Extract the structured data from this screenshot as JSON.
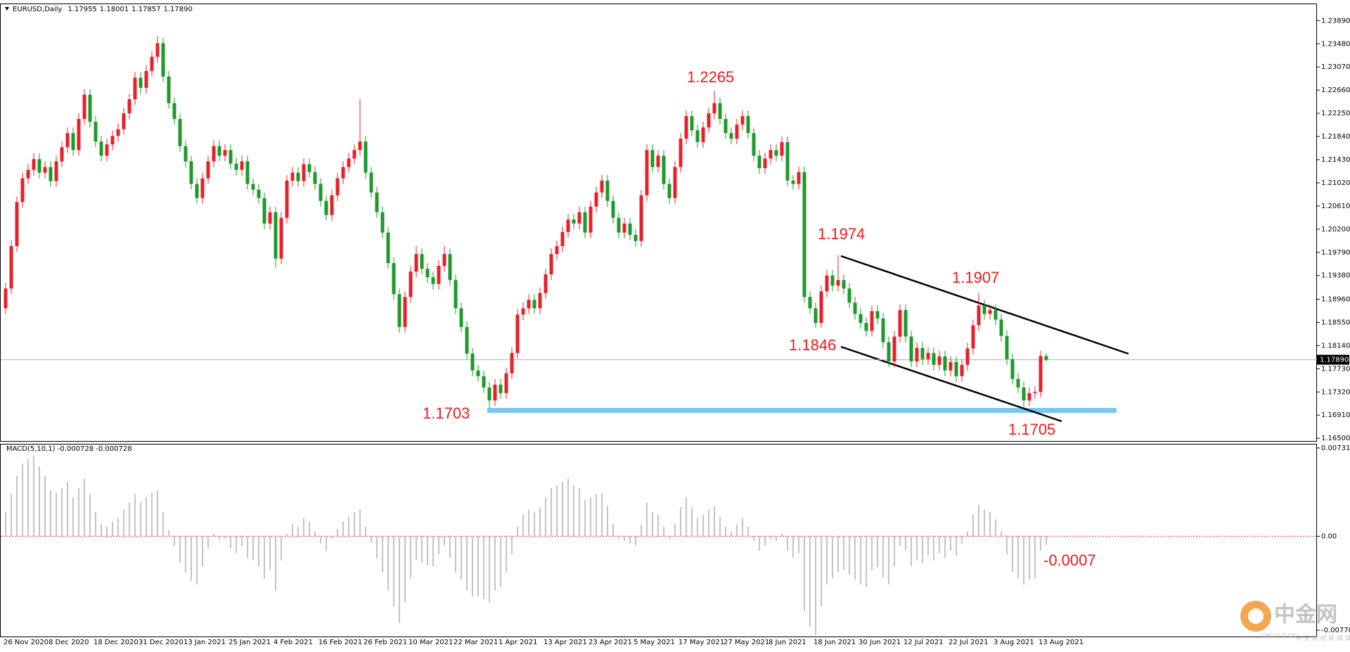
{
  "header": {
    "symbol": "EURUSD,Daily",
    "ohlc": [
      "1.17955",
      "1.18001",
      "1.17857",
      "1.17890"
    ]
  },
  "chart_data": [
    {
      "type": "candlestick",
      "categories": [
        "26 Nov 2020",
        null,
        null,
        null,
        null,
        null,
        null,
        null,
        "8 Dec 2020",
        null,
        null,
        null,
        null,
        null,
        null,
        null,
        "18 Dec 2020",
        null,
        null,
        null,
        null,
        null,
        null,
        null,
        "31 Dec 2020",
        null,
        null,
        null,
        null,
        null,
        null,
        null,
        "13 Jan 2021",
        null,
        null,
        null,
        null,
        null,
        null,
        null,
        "25 Jan 2021",
        null,
        null,
        null,
        null,
        null,
        null,
        null,
        "4 Feb 2021",
        null,
        null,
        null,
        null,
        null,
        null,
        null,
        "16 Feb 2021",
        null,
        null,
        null,
        null,
        null,
        null,
        null,
        "26 Feb 2021",
        null,
        null,
        null,
        null,
        null,
        null,
        null,
        "10 Mar 2021",
        null,
        null,
        null,
        null,
        null,
        null,
        null,
        "22 Mar 2021",
        null,
        null,
        null,
        null,
        null,
        null,
        null,
        "1 Apr 2021",
        null,
        null,
        null,
        null,
        null,
        null,
        null,
        "13 Apr 2021",
        null,
        null,
        null,
        null,
        null,
        null,
        null,
        "23 Apr 2021",
        null,
        null,
        null,
        null,
        null,
        null,
        null,
        "5 May 2021",
        null,
        null,
        null,
        null,
        null,
        null,
        null,
        "17 May 2021",
        null,
        null,
        null,
        null,
        null,
        null,
        null,
        "27 May 2021",
        null,
        null,
        null,
        null,
        null,
        null,
        null,
        "8 Jun 2021",
        null,
        null,
        null,
        null,
        null,
        null,
        null,
        "18 Jun 2021",
        null,
        null,
        null,
        null,
        null,
        null,
        null,
        "30 Jun 2021",
        null,
        null,
        null,
        null,
        null,
        null,
        null,
        "12 Jul 2021",
        null,
        null,
        null,
        null,
        null,
        null,
        null,
        "22 Jul 2021",
        null,
        null,
        null,
        null,
        null,
        null,
        null,
        "3 Aug 2021",
        null,
        null,
        null,
        null,
        null,
        null,
        null,
        "13 Aug 2021",
        null
      ],
      "open": [
        1.188,
        1.1915,
        1.199,
        1.2068,
        1.211,
        1.2125,
        1.2144,
        1.212,
        1.213,
        1.2105,
        1.214,
        1.2165,
        1.219,
        1.216,
        1.2215,
        1.2258,
        1.221,
        1.2175,
        1.215,
        1.217,
        1.2185,
        1.2197,
        1.2225,
        1.225,
        1.2288,
        1.227,
        1.23,
        1.2325,
        1.2349,
        1.229,
        1.2243,
        1.2215,
        1.2167,
        1.214,
        1.21,
        1.2075,
        1.211,
        1.214,
        1.2167,
        1.215,
        1.216,
        1.2136,
        1.2125,
        1.214,
        1.21,
        1.209,
        1.2075,
        1.203,
        1.205,
        1.1968,
        1.204,
        1.2106,
        1.212,
        1.2105,
        1.2135,
        1.2121,
        1.21,
        1.207,
        1.2045,
        1.208,
        1.211,
        1.213,
        1.2145,
        1.216,
        1.2175,
        1.212,
        1.2085,
        1.205,
        1.2014,
        1.196,
        1.1905,
        1.1847,
        1.19,
        1.1945,
        1.1976,
        1.195,
        1.1935,
        1.1923,
        1.1955,
        1.1976,
        1.193,
        1.188,
        1.1847,
        1.18,
        1.177,
        1.176,
        1.174,
        1.1717,
        1.1745,
        1.173,
        1.1765,
        1.1801,
        1.1869,
        1.188,
        1.1895,
        1.188,
        1.1907,
        1.194,
        1.1976,
        1.199,
        1.2015,
        1.2037,
        1.203,
        1.205,
        1.2014,
        1.206,
        1.2085,
        1.2106,
        1.207,
        1.204,
        1.2014,
        1.203,
        1.201,
        1.1999,
        1.208,
        1.216,
        1.213,
        1.215,
        1.21,
        1.2075,
        1.213,
        1.218,
        1.222,
        1.2195,
        1.2174,
        1.22,
        1.2225,
        1.2243,
        1.2215,
        1.219,
        1.218,
        1.2205,
        1.222,
        1.219,
        1.215,
        1.2128,
        1.2145,
        1.216,
        1.215,
        1.2174,
        1.2106,
        1.21,
        1.2121,
        1.19,
        1.188,
        1.1854,
        1.191,
        1.1938,
        1.192,
        1.193,
        1.1915,
        1.189,
        1.187,
        1.1854,
        1.184,
        1.1875,
        1.1862,
        1.182,
        1.1786,
        1.183,
        1.1877,
        1.183,
        1.1786,
        1.181,
        1.179,
        1.1801,
        1.178,
        1.1795,
        1.177,
        1.1785,
        1.176,
        1.178,
        1.1809,
        1.185,
        1.1885,
        1.187,
        1.1877,
        1.186,
        1.1831,
        1.179,
        1.1755,
        1.174,
        1.1717,
        1.173,
        1.1732,
        1.17955
      ],
      "high": [
        1.1925,
        1.2,
        1.2078,
        1.212,
        1.2135,
        1.2154,
        1.2154,
        1.214,
        1.214,
        1.215,
        1.2175,
        1.22,
        1.22,
        1.2225,
        1.2268,
        1.2268,
        1.222,
        1.2185,
        1.218,
        1.2195,
        1.2207,
        1.2235,
        1.226,
        1.2298,
        1.2298,
        1.231,
        1.2335,
        1.2362,
        1.2359,
        1.23,
        1.2253,
        1.2225,
        1.2177,
        1.215,
        1.211,
        1.212,
        1.215,
        1.2177,
        1.2177,
        1.217,
        1.217,
        1.2146,
        1.215,
        1.215,
        1.211,
        1.21,
        1.2085,
        1.206,
        1.206,
        1.205,
        1.2116,
        1.213,
        1.213,
        1.2145,
        1.2145,
        1.2131,
        1.211,
        1.208,
        1.209,
        1.212,
        1.214,
        1.2155,
        1.217,
        1.225,
        1.2185,
        1.213,
        1.2095,
        1.206,
        1.2024,
        1.197,
        1.1915,
        1.191,
        1.1955,
        1.199,
        1.1986,
        1.196,
        1.1945,
        1.1965,
        1.199,
        1.1986,
        1.194,
        1.189,
        1.1857,
        1.181,
        1.178,
        1.177,
        1.175,
        1.1755,
        1.1755,
        1.1775,
        1.1811,
        1.1879,
        1.189,
        1.1905,
        1.1905,
        1.1917,
        1.195,
        1.1986,
        1.2,
        1.2025,
        1.2047,
        1.2047,
        1.206,
        1.206,
        1.207,
        1.2095,
        1.2116,
        1.2116,
        1.208,
        1.205,
        1.204,
        1.204,
        1.202,
        1.209,
        1.217,
        1.217,
        1.216,
        1.216,
        1.211,
        1.214,
        1.219,
        1.223,
        1.223,
        1.2205,
        1.221,
        1.2235,
        1.2265,
        1.2253,
        1.2225,
        1.22,
        1.2215,
        1.223,
        1.223,
        1.22,
        1.216,
        1.2155,
        1.217,
        1.217,
        1.2184,
        1.2184,
        1.2116,
        1.2131,
        1.2131,
        1.191,
        1.189,
        1.192,
        1.1948,
        1.1948,
        1.1974,
        1.194,
        1.1925,
        1.19,
        1.188,
        1.1864,
        1.1885,
        1.1885,
        1.1872,
        1.183,
        1.184,
        1.1887,
        1.1887,
        1.184,
        1.182,
        1.182,
        1.1811,
        1.1811,
        1.1805,
        1.1805,
        1.1795,
        1.1795,
        1.179,
        1.1819,
        1.186,
        1.1907,
        1.1895,
        1.1887,
        1.1887,
        1.187,
        1.1841,
        1.18,
        1.1765,
        1.175,
        1.174,
        1.1742,
        1.1805,
        1.18001
      ],
      "low": [
        1.187,
        1.1905,
        1.198,
        1.2058,
        1.21,
        1.2115,
        1.211,
        1.211,
        1.2095,
        1.2095,
        1.213,
        1.2155,
        1.215,
        1.215,
        1.2205,
        1.22,
        1.2165,
        1.214,
        1.214,
        1.216,
        1.2175,
        1.2187,
        1.2215,
        1.224,
        1.226,
        1.226,
        1.229,
        1.2315,
        1.228,
        1.2233,
        1.2205,
        1.2157,
        1.213,
        1.209,
        1.2065,
        1.2065,
        1.21,
        1.213,
        1.214,
        1.214,
        1.2126,
        1.2115,
        1.2115,
        1.209,
        1.208,
        1.2065,
        1.202,
        1.202,
        1.1952,
        1.1958,
        1.203,
        1.2096,
        1.2095,
        1.2095,
        1.2111,
        1.209,
        1.206,
        1.2035,
        1.2035,
        1.207,
        1.21,
        1.212,
        1.2135,
        1.215,
        1.211,
        1.2075,
        1.204,
        1.2004,
        1.195,
        1.1895,
        1.1837,
        1.1837,
        1.189,
        1.1935,
        1.194,
        1.1925,
        1.1913,
        1.1913,
        1.1945,
        1.192,
        1.187,
        1.1837,
        1.179,
        1.176,
        1.175,
        1.173,
        1.1703,
        1.1707,
        1.172,
        1.172,
        1.1755,
        1.1791,
        1.1859,
        1.187,
        1.187,
        1.187,
        1.1897,
        1.193,
        1.1966,
        1.198,
        1.2005,
        1.202,
        1.202,
        1.2004,
        1.2004,
        1.205,
        1.2075,
        1.206,
        1.203,
        1.2004,
        1.2004,
        1.2,
        1.1989,
        1.1989,
        1.207,
        1.212,
        1.212,
        1.209,
        1.2065,
        1.2065,
        1.212,
        1.217,
        1.2185,
        1.2164,
        1.2164,
        1.219,
        1.2215,
        1.2205,
        1.218,
        1.217,
        1.217,
        1.2195,
        1.218,
        1.214,
        1.2118,
        1.2118,
        1.2135,
        1.214,
        1.214,
        1.2096,
        1.209,
        1.209,
        1.189,
        1.187,
        1.1846,
        1.1846,
        1.19,
        1.191,
        1.191,
        1.1905,
        1.188,
        1.186,
        1.1844,
        1.183,
        1.183,
        1.1852,
        1.181,
        1.1776,
        1.1776,
        1.182,
        1.182,
        1.1776,
        1.1776,
        1.178,
        1.178,
        1.177,
        1.177,
        1.176,
        1.176,
        1.175,
        1.175,
        1.177,
        1.1799,
        1.184,
        1.186,
        1.186,
        1.185,
        1.1821,
        1.178,
        1.1745,
        1.173,
        1.1705,
        1.1707,
        1.172,
        1.1722,
        1.17857
      ],
      "close": [
        1.1915,
        1.199,
        1.2068,
        1.211,
        1.2125,
        1.2144,
        1.212,
        1.213,
        1.2105,
        1.214,
        1.2165,
        1.219,
        1.216,
        1.2215,
        1.2258,
        1.221,
        1.2175,
        1.215,
        1.217,
        1.2185,
        1.2197,
        1.2225,
        1.225,
        1.2288,
        1.227,
        1.23,
        1.2325,
        1.2349,
        1.229,
        1.2243,
        1.2215,
        1.2167,
        1.214,
        1.21,
        1.2075,
        1.211,
        1.214,
        1.2167,
        1.215,
        1.216,
        1.2136,
        1.2125,
        1.214,
        1.21,
        1.209,
        1.2075,
        1.203,
        1.205,
        1.1968,
        1.204,
        1.2106,
        1.212,
        1.2105,
        1.2135,
        1.2121,
        1.21,
        1.207,
        1.2045,
        1.208,
        1.211,
        1.213,
        1.2145,
        1.216,
        1.2175,
        1.212,
        1.2085,
        1.205,
        1.2014,
        1.196,
        1.1905,
        1.1847,
        1.19,
        1.1945,
        1.1976,
        1.195,
        1.1935,
        1.1923,
        1.1955,
        1.1976,
        1.193,
        1.188,
        1.1847,
        1.18,
        1.177,
        1.176,
        1.174,
        1.1717,
        1.1745,
        1.173,
        1.1765,
        1.1801,
        1.1869,
        1.188,
        1.1895,
        1.188,
        1.1907,
        1.194,
        1.1976,
        1.199,
        1.2015,
        1.2037,
        1.203,
        1.205,
        1.2014,
        1.206,
        1.2085,
        1.2106,
        1.207,
        1.204,
        1.2014,
        1.203,
        1.201,
        1.1999,
        1.208,
        1.216,
        1.213,
        1.215,
        1.21,
        1.2075,
        1.213,
        1.218,
        1.222,
        1.2195,
        1.2174,
        1.22,
        1.2225,
        1.2243,
        1.2215,
        1.219,
        1.218,
        1.2205,
        1.222,
        1.219,
        1.215,
        1.2128,
        1.2145,
        1.216,
        1.215,
        1.2174,
        1.2106,
        1.21,
        1.2121,
        1.19,
        1.188,
        1.1854,
        1.191,
        1.1938,
        1.192,
        1.193,
        1.1915,
        1.189,
        1.187,
        1.1854,
        1.184,
        1.1875,
        1.1862,
        1.182,
        1.1786,
        1.183,
        1.1877,
        1.183,
        1.1786,
        1.181,
        1.179,
        1.1801,
        1.178,
        1.1795,
        1.177,
        1.1785,
        1.176,
        1.178,
        1.1809,
        1.185,
        1.1885,
        1.187,
        1.1877,
        1.186,
        1.1831,
        1.179,
        1.1755,
        1.174,
        1.1717,
        1.173,
        1.1732,
        1.17955,
        1.1789
      ],
      "up_color": "#e8202a",
      "down_color": "#1e9a2a",
      "ylim": [
        1.1644,
        1.2418
      ],
      "yticks": [
        {
          "value": 1.2389,
          "label": "1.23890"
        },
        {
          "value": 1.2348,
          "label": "1.23480"
        },
        {
          "value": 1.2307,
          "label": "1.23070"
        },
        {
          "value": 1.2266,
          "label": "1.22660"
        },
        {
          "value": 1.2225,
          "label": "1.22250"
        },
        {
          "value": 1.2184,
          "label": "1.21840"
        },
        {
          "value": 1.2143,
          "label": "1.21430"
        },
        {
          "value": 1.2102,
          "label": "1.21020"
        },
        {
          "value": 1.2061,
          "label": "1.20610"
        },
        {
          "value": 1.202,
          "label": "1.20200"
        },
        {
          "value": 1.1979,
          "label": "1.19790"
        },
        {
          "value": 1.1938,
          "label": "1.19380"
        },
        {
          "value": 1.1896,
          "label": "1.18960"
        },
        {
          "value": 1.1855,
          "label": "1.18550"
        },
        {
          "value": 1.1814,
          "label": "1.18140"
        },
        {
          "value": 1.1773,
          "label": "1.17730"
        },
        {
          "value": 1.1732,
          "label": "1.17320"
        },
        {
          "value": 1.1691,
          "label": "1.16910"
        },
        {
          "value": 1.165,
          "label": "1.16500"
        }
      ],
      "last_price": {
        "value": 1.1789,
        "label": "1.17890"
      },
      "annotations": [
        "1.2265",
        "1.1974",
        "1.1907",
        "1.1846",
        "1.1703",
        "1.1705"
      ]
    },
    {
      "type": "bar",
      "title": "MACD(5,10,1) -0.000728 -0.000728",
      "color": "#c4c4c4",
      "zero_color": "#e03030",
      "values": [
        0.002,
        0.0035,
        0.005,
        0.006,
        0.0064,
        0.0067,
        0.0058,
        0.005,
        0.0038,
        0.0036,
        0.004,
        0.0045,
        0.0032,
        0.004,
        0.0048,
        0.0035,
        0.002,
        0.001,
        0.0008,
        0.0012,
        0.0015,
        0.0022,
        0.0028,
        0.0035,
        0.0028,
        0.0032,
        0.0036,
        0.0038,
        0.002,
        0.0005,
        -0.0008,
        -0.0022,
        -0.003,
        -0.0037,
        -0.004,
        -0.0025,
        -0.001,
        0.0002,
        -0.0003,
        -0.0002,
        -0.001,
        -0.0014,
        -0.0008,
        -0.0018,
        -0.002,
        -0.0025,
        -0.0035,
        -0.0028,
        -0.0045,
        -0.002,
        0.0002,
        0.001,
        0.0008,
        0.0015,
        0.0012,
        0.0004,
        -0.0006,
        -0.0012,
        -0.0002,
        0.0006,
        0.0012,
        0.0016,
        0.002,
        0.0022,
        0.0008,
        -0.0005,
        -0.0018,
        -0.003,
        -0.0045,
        -0.0058,
        -0.0072,
        -0.0055,
        -0.0035,
        -0.002,
        -0.0022,
        -0.0024,
        -0.0025,
        -0.0015,
        -0.0008,
        -0.0018,
        -0.003,
        -0.0036,
        -0.0045,
        -0.005,
        -0.005,
        -0.0052,
        -0.0055,
        -0.0045,
        -0.0042,
        -0.003,
        -0.0015,
        0.0008,
        0.0018,
        0.0022,
        0.002,
        0.0024,
        0.0032,
        0.004,
        0.0042,
        0.0045,
        0.0048,
        0.0042,
        0.004,
        0.003,
        0.0032,
        0.0035,
        0.0036,
        0.0025,
        0.001,
        -0.0002,
        -0.0004,
        -0.0006,
        -0.0008,
        0.001,
        0.0028,
        0.002,
        0.0018,
        0.0008,
        -0.0002,
        0.001,
        0.0024,
        0.0032,
        0.0024,
        0.0015,
        0.0018,
        0.0022,
        0.0025,
        0.0016,
        0.0008,
        0.0004,
        0.001,
        0.0015,
        0.0008,
        -0.0004,
        -0.0012,
        -0.0008,
        -0.0002,
        -0.0004,
        0.0002,
        -0.0012,
        -0.0018,
        -0.0014,
        -0.0062,
        -0.0075,
        -0.0082,
        -0.0058,
        -0.004,
        -0.0035,
        -0.003,
        -0.0028,
        -0.0032,
        -0.0036,
        -0.004,
        -0.0042,
        -0.0028,
        -0.0026,
        -0.0034,
        -0.004,
        -0.0025,
        -0.0008,
        -0.0012,
        -0.0025,
        -0.002,
        -0.0022,
        -0.0016,
        -0.002,
        -0.0014,
        -0.0018,
        -0.0012,
        -0.0016,
        -0.0006,
        0.0004,
        0.0018,
        0.0026,
        0.0022,
        0.002,
        0.0014,
        0.0004,
        -0.0015,
        -0.003,
        -0.0035,
        -0.004,
        -0.0036,
        -0.0035,
        -0.0012,
        -0.000728
      ],
      "ylim": [
        -0.00837,
        0.00766
      ],
      "yticks": [
        0.007313,
        {
          "value": 0,
          "label": "0.00"
        },
        -0.007787
      ],
      "annotations": [
        "-0.0007"
      ]
    }
  ],
  "watermark": {
    "logo": "中金网",
    "url": "CNGOLD.CN",
    "slogan": "中 文 财 经 新 媒 体"
  }
}
